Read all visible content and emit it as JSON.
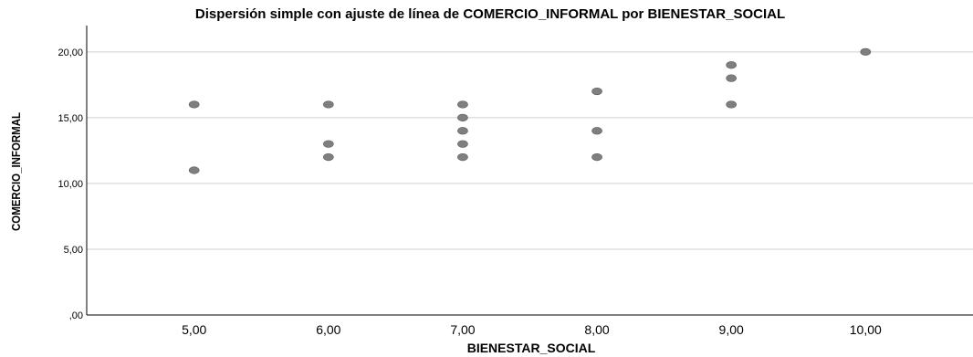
{
  "chart_data": {
    "type": "scatter",
    "title": "Dispersión simple con ajuste de línea de COMERCIO_INFORMAL por BIENESTAR_SOCIAL",
    "xlabel": "BIENESTAR_SOCIAL",
    "ylabel": "COMERCIO_INFORMAL",
    "xlim": [
      4.2,
      10.8
    ],
    "ylim": [
      0,
      22
    ],
    "x_ticks": [
      5,
      6,
      7,
      8,
      9,
      10
    ],
    "x_tick_labels": [
      "5,00",
      "6,00",
      "7,00",
      "8,00",
      "9,00",
      "10,00"
    ],
    "y_ticks": [
      0,
      5,
      10,
      15,
      20
    ],
    "y_tick_labels": [
      ",00",
      "5,00",
      "10,00",
      "15,00",
      "20,00"
    ],
    "grid": "horizontal",
    "point_color": "#7f7f7f",
    "points": [
      {
        "x": 5,
        "y": 16
      },
      {
        "x": 5,
        "y": 11
      },
      {
        "x": 6,
        "y": 16
      },
      {
        "x": 6,
        "y": 13
      },
      {
        "x": 6,
        "y": 12
      },
      {
        "x": 7,
        "y": 16
      },
      {
        "x": 7,
        "y": 15
      },
      {
        "x": 7,
        "y": 14
      },
      {
        "x": 7,
        "y": 13
      },
      {
        "x": 7,
        "y": 12
      },
      {
        "x": 8,
        "y": 17
      },
      {
        "x": 8,
        "y": 14
      },
      {
        "x": 8,
        "y": 12
      },
      {
        "x": 9,
        "y": 19
      },
      {
        "x": 9,
        "y": 18
      },
      {
        "x": 9,
        "y": 16
      },
      {
        "x": 10,
        "y": 20
      }
    ]
  }
}
